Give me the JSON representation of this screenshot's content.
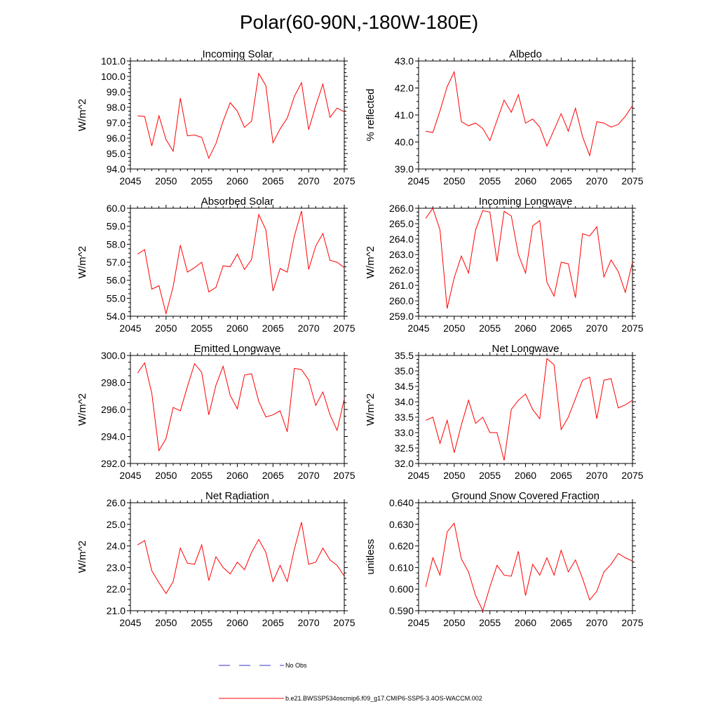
{
  "title": "Polar(60-90N,-180W-180E)",
  "colors": {
    "model_line": "#ff0000",
    "obs_line": "#3333cc",
    "axis": "#000000"
  },
  "legend": {
    "obs_label": "No Obs",
    "model_label": "b.e21.BWSSP534oscmip6.f09_g17.CMIP6-SSP5-3.4OS-WACCM.002"
  },
  "chart_data": [
    {
      "type": "line",
      "title": "Incoming Solar",
      "xlabel": "",
      "ylabel": "W/m^2",
      "xlim": [
        2045,
        2075
      ],
      "ylim": [
        94.0,
        101.0
      ],
      "xticks": [
        2045,
        2050,
        2055,
        2060,
        2065,
        2070,
        2075
      ],
      "xtick_labels": [
        "2045",
        "2050",
        "2055",
        "2060",
        "2065",
        "2070",
        "2075"
      ],
      "yticks": [
        94,
        95,
        96,
        97,
        98,
        99,
        100,
        101
      ],
      "ytick_labels": [
        "94.0",
        "95.0",
        "96.0",
        "97.0",
        "98.0",
        "99.0",
        "100.0",
        "101.0"
      ],
      "series": [
        {
          "name": "b.e21.BWSSP534oscmip6.f09_g17.CMIP6-SSP5-3.4OS-WACCM.002",
          "x": [
            2046,
            2047,
            2048,
            2049,
            2050,
            2051,
            2052,
            2053,
            2054,
            2055,
            2056,
            2057,
            2058,
            2059,
            2060,
            2061,
            2062,
            2063,
            2064,
            2065,
            2066,
            2067,
            2068,
            2069,
            2070,
            2071,
            2072,
            2073,
            2074,
            2075
          ],
          "y": [
            97.45,
            97.4,
            95.5,
            97.45,
            95.9,
            95.15,
            98.6,
            96.15,
            96.2,
            96.05,
            94.7,
            95.65,
            97.1,
            98.3,
            97.75,
            96.7,
            97.1,
            100.2,
            99.4,
            95.7,
            96.6,
            97.3,
            98.7,
            99.6,
            96.55,
            98.1,
            99.5,
            97.35,
            97.95,
            97.7
          ]
        }
      ]
    },
    {
      "type": "line",
      "title": "Albedo",
      "xlabel": "",
      "ylabel": "% reflected",
      "xlim": [
        2045,
        2075
      ],
      "ylim": [
        39.0,
        43.0
      ],
      "xticks": [
        2045,
        2050,
        2055,
        2060,
        2065,
        2070,
        2075
      ],
      "xtick_labels": [
        "2045",
        "2050",
        "2055",
        "2060",
        "2065",
        "2070",
        "2075"
      ],
      "yticks": [
        39,
        40,
        41,
        42,
        43
      ],
      "ytick_labels": [
        "39.0",
        "40.0",
        "41.0",
        "42.0",
        "43.0"
      ],
      "series": [
        {
          "name": "b.e21.BWSSP534oscmip6.f09_g17.CMIP6-SSP5-3.4OS-WACCM.002",
          "x": [
            2046,
            2047,
            2048,
            2049,
            2050,
            2051,
            2052,
            2053,
            2054,
            2055,
            2056,
            2057,
            2058,
            2059,
            2060,
            2061,
            2062,
            2063,
            2064,
            2065,
            2066,
            2067,
            2068,
            2069,
            2070,
            2071,
            2072,
            2073,
            2074,
            2075
          ],
          "y": [
            40.4,
            40.35,
            41.15,
            42.05,
            42.6,
            40.75,
            40.6,
            40.7,
            40.5,
            40.05,
            40.8,
            41.55,
            41.1,
            41.75,
            40.7,
            40.85,
            40.55,
            39.85,
            40.45,
            41.05,
            40.4,
            41.25,
            40.2,
            39.5,
            40.75,
            40.7,
            40.55,
            40.65,
            40.95,
            41.35
          ]
        }
      ]
    },
    {
      "type": "line",
      "title": "Absorbed Solar",
      "xlabel": "",
      "ylabel": "W/m^2",
      "xlim": [
        2045,
        2075
      ],
      "ylim": [
        54.0,
        60.0
      ],
      "xticks": [
        2045,
        2050,
        2055,
        2060,
        2065,
        2070,
        2075
      ],
      "xtick_labels": [
        "2045",
        "2050",
        "2055",
        "2060",
        "2065",
        "2070",
        "2075"
      ],
      "yticks": [
        54,
        55,
        56,
        57,
        58,
        59,
        60
      ],
      "ytick_labels": [
        "54.0",
        "55.0",
        "56.0",
        "57.0",
        "58.0",
        "59.0",
        "60.0"
      ],
      "series": [
        {
          "name": "b.e21.BWSSP534oscmip6.f09_g17.CMIP6-SSP5-3.4OS-WACCM.002",
          "x": [
            2046,
            2047,
            2048,
            2049,
            2050,
            2051,
            2052,
            2053,
            2054,
            2055,
            2056,
            2057,
            2058,
            2059,
            2060,
            2061,
            2062,
            2063,
            2064,
            2065,
            2066,
            2067,
            2068,
            2069,
            2070,
            2071,
            2072,
            2073,
            2074,
            2075
          ],
          "y": [
            57.45,
            57.7,
            55.5,
            55.7,
            54.15,
            55.65,
            57.95,
            56.45,
            56.7,
            57.0,
            55.35,
            55.6,
            56.8,
            56.75,
            57.45,
            56.6,
            57.15,
            59.65,
            58.8,
            55.4,
            56.65,
            56.45,
            58.45,
            59.85,
            56.6,
            57.9,
            58.6,
            57.1,
            57.0,
            56.7
          ]
        }
      ]
    },
    {
      "type": "line",
      "title": "Incoming Longwave",
      "xlabel": "",
      "ylabel": "W/m^2",
      "xlim": [
        2045,
        2075
      ],
      "ylim": [
        259.0,
        266.0
      ],
      "xticks": [
        2045,
        2050,
        2055,
        2060,
        2065,
        2070,
        2075
      ],
      "xtick_labels": [
        "2045",
        "2050",
        "2055",
        "2060",
        "2065",
        "2070",
        "2075"
      ],
      "yticks": [
        259,
        260,
        261,
        262,
        263,
        264,
        265,
        266
      ],
      "ytick_labels": [
        "259.0",
        "260.0",
        "261.0",
        "262.0",
        "263.0",
        "264.0",
        "265.0",
        "266.0"
      ],
      "series": [
        {
          "name": "b.e21.BWSSP534oscmip6.f09_g17.CMIP6-SSP5-3.4OS-WACCM.002",
          "x": [
            2046,
            2047,
            2048,
            2049,
            2050,
            2051,
            2052,
            2053,
            2054,
            2055,
            2056,
            2057,
            2058,
            2059,
            2060,
            2061,
            2062,
            2063,
            2064,
            2065,
            2066,
            2067,
            2068,
            2069,
            2070,
            2071,
            2072,
            2073,
            2074,
            2075
          ],
          "y": [
            265.35,
            266.0,
            264.6,
            259.5,
            261.5,
            262.9,
            261.8,
            264.6,
            265.85,
            265.75,
            262.55,
            265.8,
            265.5,
            263.0,
            261.8,
            264.85,
            265.2,
            261.2,
            260.3,
            262.5,
            262.4,
            260.2,
            264.35,
            264.2,
            264.8,
            261.55,
            262.65,
            261.9,
            260.55,
            262.5
          ]
        }
      ]
    },
    {
      "type": "line",
      "title": "Emitted Longwave",
      "xlabel": "",
      "ylabel": "W/m^2",
      "xlim": [
        2045,
        2075
      ],
      "ylim": [
        292.0,
        300.0
      ],
      "xticks": [
        2045,
        2050,
        2055,
        2060,
        2065,
        2070,
        2075
      ],
      "xtick_labels": [
        "2045",
        "2050",
        "2055",
        "2060",
        "2065",
        "2070",
        "2075"
      ],
      "yticks": [
        292,
        294,
        296,
        298,
        300
      ],
      "ytick_labels": [
        "292.0",
        "294.0",
        "296.0",
        "298.0",
        "300.0"
      ],
      "series": [
        {
          "name": "b.e21.BWSSP534oscmip6.f09_g17.CMIP6-SSP5-3.4OS-WACCM.002",
          "x": [
            2046,
            2047,
            2048,
            2049,
            2050,
            2051,
            2052,
            2053,
            2054,
            2055,
            2056,
            2057,
            2058,
            2059,
            2060,
            2061,
            2062,
            2063,
            2064,
            2065,
            2066,
            2067,
            2068,
            2069,
            2070,
            2071,
            2072,
            2073,
            2074,
            2075
          ],
          "y": [
            298.7,
            299.45,
            297.2,
            292.95,
            293.85,
            296.15,
            295.9,
            297.7,
            299.4,
            298.75,
            295.6,
            297.8,
            299.2,
            297.05,
            296.05,
            298.55,
            298.65,
            296.6,
            295.45,
            295.6,
            295.9,
            294.35,
            299.05,
            298.95,
            298.2,
            296.3,
            297.3,
            295.6,
            294.45,
            296.8
          ]
        }
      ]
    },
    {
      "type": "line",
      "title": "Net Longwave",
      "xlabel": "",
      "ylabel": "W/m^2",
      "xlim": [
        2045,
        2075
      ],
      "ylim": [
        32.0,
        35.5
      ],
      "xticks": [
        2045,
        2050,
        2055,
        2060,
        2065,
        2070,
        2075
      ],
      "xtick_labels": [
        "2045",
        "2050",
        "2055",
        "2060",
        "2065",
        "2070",
        "2075"
      ],
      "yticks": [
        32.0,
        32.5,
        33.0,
        33.5,
        34.0,
        34.5,
        35.0,
        35.5
      ],
      "ytick_labels": [
        "32.0",
        "32.5",
        "33.0",
        "33.5",
        "34.0",
        "34.5",
        "35.0",
        "35.5"
      ],
      "series": [
        {
          "name": "b.e21.BWSSP534oscmip6.f09_g17.CMIP6-SSP5-3.4OS-WACCM.002",
          "x": [
            2046,
            2047,
            2048,
            2049,
            2050,
            2051,
            2052,
            2053,
            2054,
            2055,
            2056,
            2057,
            2058,
            2059,
            2060,
            2061,
            2062,
            2063,
            2064,
            2065,
            2066,
            2067,
            2068,
            2069,
            2070,
            2071,
            2072,
            2073,
            2074,
            2075
          ],
          "y": [
            33.4,
            33.5,
            32.65,
            33.4,
            32.35,
            33.25,
            34.05,
            33.3,
            33.5,
            33.0,
            33.0,
            32.1,
            33.75,
            34.05,
            34.25,
            33.75,
            33.45,
            35.4,
            35.2,
            33.1,
            33.5,
            34.1,
            34.7,
            34.8,
            33.45,
            34.7,
            34.75,
            33.8,
            33.9,
            34.05
          ]
        }
      ]
    },
    {
      "type": "line",
      "title": "Net Radiation",
      "xlabel": "",
      "ylabel": "W/m^2",
      "xlim": [
        2045,
        2075
      ],
      "ylim": [
        21.0,
        26.0
      ],
      "xticks": [
        2045,
        2050,
        2055,
        2060,
        2065,
        2070,
        2075
      ],
      "xtick_labels": [
        "2045",
        "2050",
        "2055",
        "2060",
        "2065",
        "2070",
        "2075"
      ],
      "yticks": [
        21,
        22,
        23,
        24,
        25,
        26
      ],
      "ytick_labels": [
        "21.0",
        "22.0",
        "23.0",
        "24.0",
        "25.0",
        "26.0"
      ],
      "series": [
        {
          "name": "b.e21.BWSSP534oscmip6.f09_g17.CMIP6-SSP5-3.4OS-WACCM.002",
          "x": [
            2046,
            2047,
            2048,
            2049,
            2050,
            2051,
            2052,
            2053,
            2054,
            2055,
            2056,
            2057,
            2058,
            2059,
            2060,
            2061,
            2062,
            2063,
            2064,
            2065,
            2066,
            2067,
            2068,
            2069,
            2070,
            2071,
            2072,
            2073,
            2074,
            2075
          ],
          "y": [
            24.05,
            24.25,
            22.85,
            22.3,
            21.8,
            22.35,
            23.9,
            23.2,
            23.15,
            24.05,
            22.4,
            23.5,
            23.0,
            22.7,
            23.25,
            22.9,
            23.7,
            24.3,
            23.7,
            22.35,
            23.1,
            22.35,
            23.85,
            25.1,
            23.15,
            23.25,
            23.9,
            23.35,
            23.1,
            22.6
          ]
        }
      ]
    },
    {
      "type": "line",
      "title": "Ground Snow Covered Fraction",
      "xlabel": "",
      "ylabel": "unitless",
      "xlim": [
        2045,
        2075
      ],
      "ylim": [
        0.59,
        0.64
      ],
      "xticks": [
        2045,
        2050,
        2055,
        2060,
        2065,
        2070,
        2075
      ],
      "xtick_labels": [
        "2045",
        "2050",
        "2055",
        "2060",
        "2065",
        "2070",
        "2075"
      ],
      "yticks": [
        0.59,
        0.6,
        0.61,
        0.62,
        0.63,
        0.64
      ],
      "ytick_labels": [
        "0.590",
        "0.600",
        "0.610",
        "0.620",
        "0.630",
        "0.640"
      ],
      "series": [
        {
          "name": "b.e21.BWSSP534oscmip6.f09_g17.CMIP6-SSP5-3.4OS-WACCM.002",
          "x": [
            2046,
            2047,
            2048,
            2049,
            2050,
            2051,
            2052,
            2053,
            2054,
            2055,
            2056,
            2057,
            2058,
            2059,
            2060,
            2061,
            2062,
            2063,
            2064,
            2065,
            2066,
            2067,
            2068,
            2069,
            2070,
            2071,
            2072,
            2073,
            2074,
            2075
          ],
          "y": [
            0.601,
            0.6145,
            0.6065,
            0.6265,
            0.6305,
            0.614,
            0.608,
            0.597,
            0.59,
            0.601,
            0.611,
            0.6065,
            0.606,
            0.6175,
            0.597,
            0.6115,
            0.6065,
            0.6145,
            0.6065,
            0.618,
            0.608,
            0.6135,
            0.605,
            0.595,
            0.599,
            0.608,
            0.6115,
            0.6165,
            0.6145,
            0.613
          ]
        }
      ]
    }
  ]
}
